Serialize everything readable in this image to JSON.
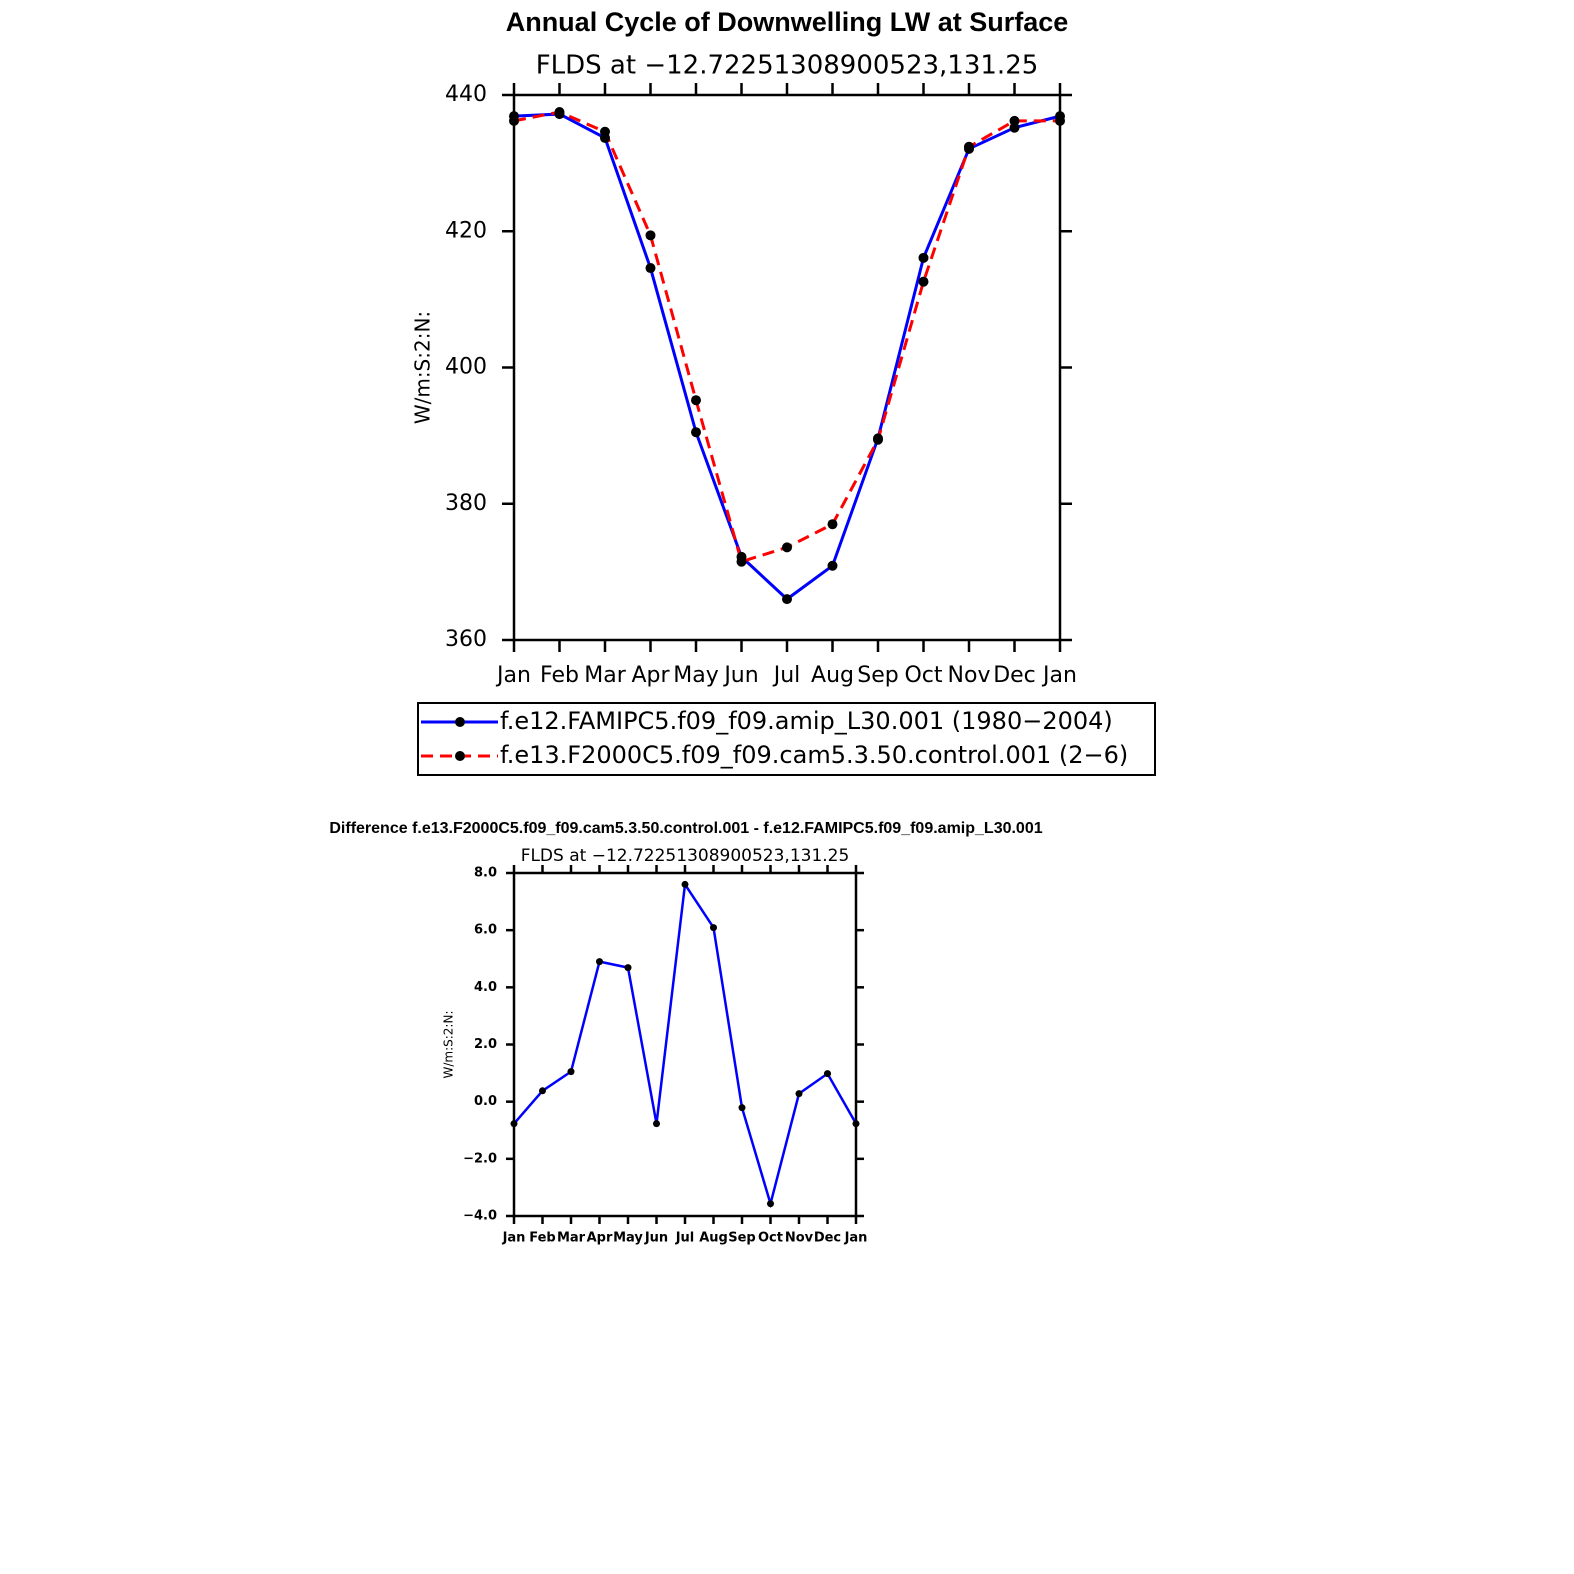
{
  "chart_data": [
    {
      "type": "line",
      "title": "Annual Cycle of Downwelling LW at Surface",
      "subtitle": "FLDS at −12.72251308900523,131.25",
      "y_label": "W/m:S:2:N:",
      "categories": [
        "Jan",
        "Feb",
        "Mar",
        "Apr",
        "May",
        "Jun",
        "Jul",
        "Aug",
        "Sep",
        "Oct",
        "Nov",
        "Dec",
        "Jan"
      ],
      "series": [
        {
          "name": "f.e12.FAMIPC5.f09_f09.amip_L30.001 (1980−2004)",
          "color": "#0000ff",
          "dashed": false,
          "values": [
            436.9,
            437.2,
            433.7,
            414.6,
            390.5,
            372.2,
            366.0,
            370.9,
            389.6,
            416.1,
            432.1,
            435.2,
            436.9
          ]
        },
        {
          "name": "f.e13.F2000C5.f09_f09.cam5.3.50.control.001 (2−6)",
          "color": "#ff0000",
          "dashed": true,
          "values": [
            436.2,
            437.5,
            434.6,
            419.4,
            395.2,
            371.5,
            373.6,
            377.0,
            389.4,
            412.6,
            432.4,
            436.2,
            436.2
          ]
        }
      ],
      "marker_color": "#000000",
      "ylim": [
        360,
        440
      ],
      "yticks": [
        360,
        380,
        400,
        420,
        440
      ]
    },
    {
      "type": "line",
      "title": "Difference f.e13.F2000C5.f09_f09.cam5.3.50.control.001 - f.e12.FAMIPC5.f09_f09.amip_L30.001",
      "subtitle": "FLDS at −12.72251308900523,131.25",
      "y_label": "W/m:S:2:N:",
      "categories": [
        "Jan",
        "Feb",
        "Mar",
        "Apr",
        "May",
        "Jun",
        "Jul",
        "Aug",
        "Sep",
        "Oct",
        "Nov",
        "Dec",
        "Jan"
      ],
      "values": [
        -0.77,
        0.38,
        1.05,
        4.9,
        4.69,
        -0.77,
        7.6,
        6.09,
        -0.21,
        -3.57,
        0.28,
        0.98,
        -0.77
      ],
      "color": "#0000ff",
      "marker_color": "#000000",
      "ylim": [
        -4,
        8
      ],
      "yticks": [
        {
          "value": -4,
          "label": "−4.0"
        },
        {
          "value": -2,
          "label": "−2.0"
        },
        {
          "value": 0,
          "label": "0.0"
        },
        {
          "value": 2,
          "label": "2.0"
        },
        {
          "value": 4,
          "label": "4.0"
        },
        {
          "value": 6,
          "label": "6.0"
        },
        {
          "value": 8,
          "label": "8.0"
        }
      ]
    }
  ]
}
